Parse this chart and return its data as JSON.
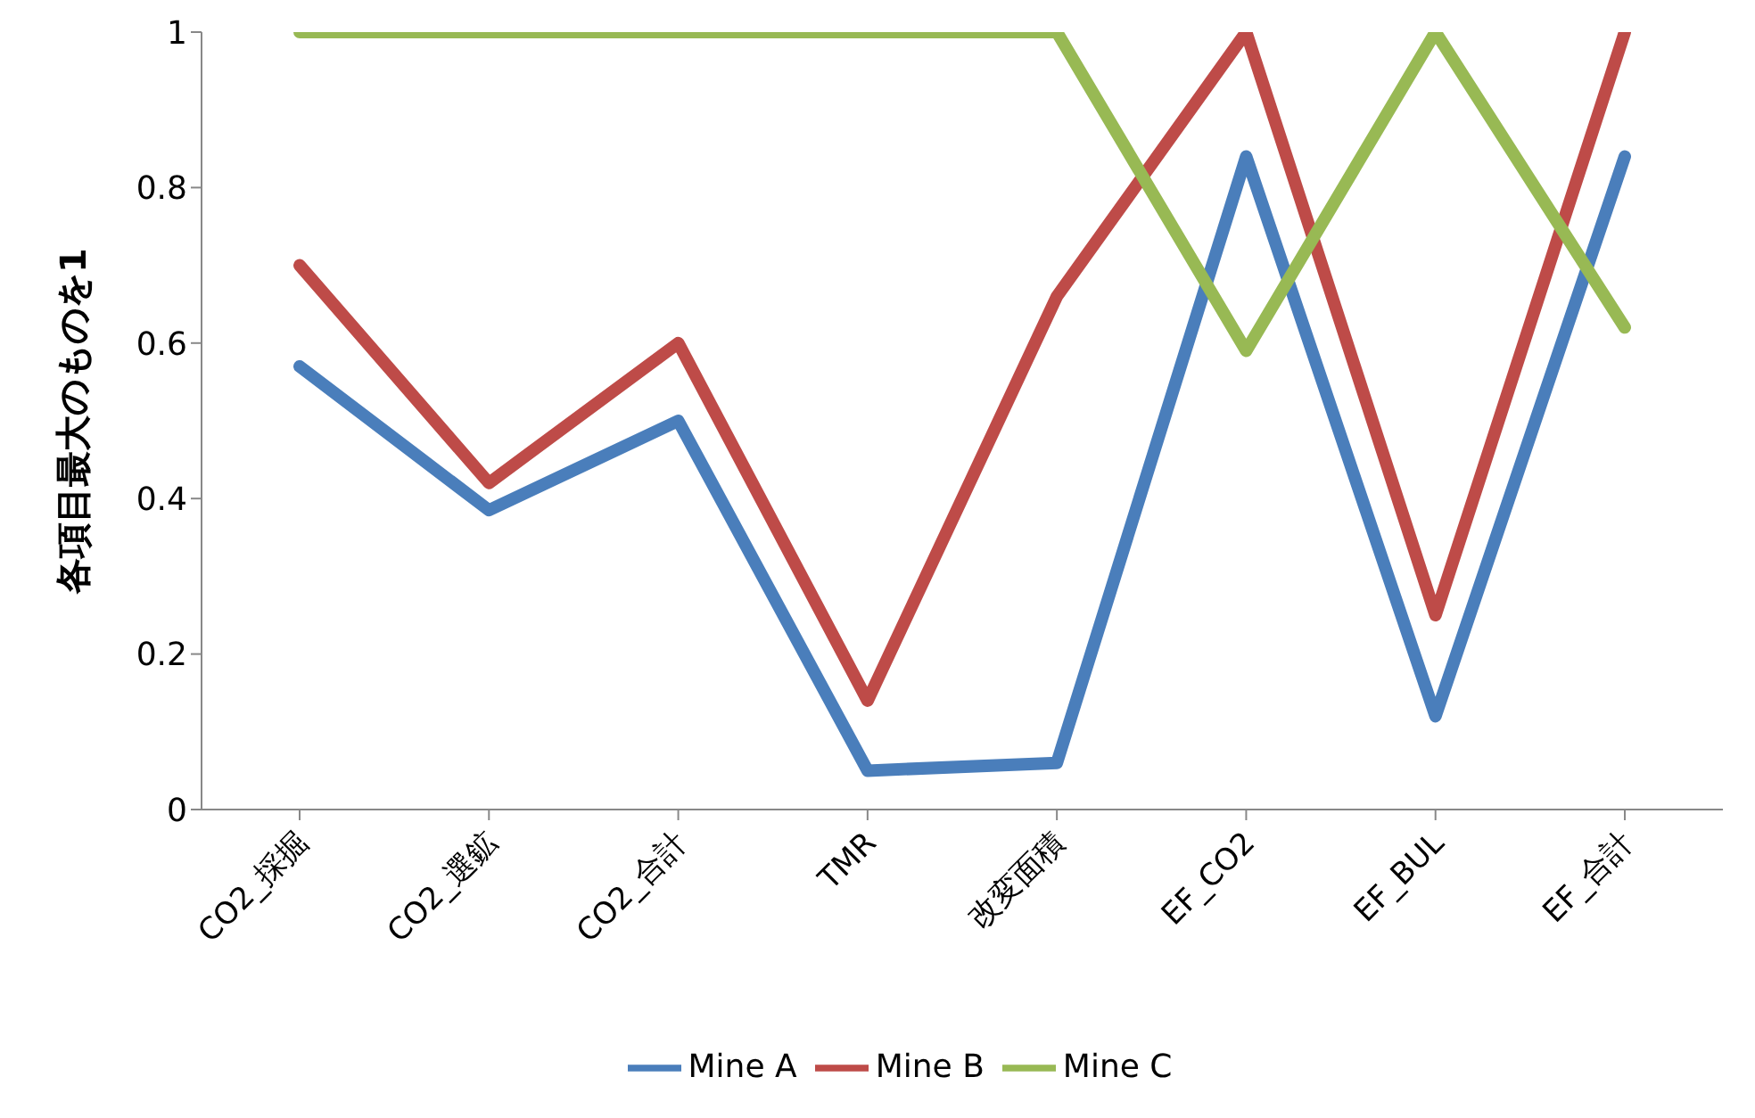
{
  "chart_data": {
    "type": "line",
    "ylabel": "各項目最大のものを1",
    "categories": [
      "CO2_採掘",
      "CO2_選鉱",
      "CO2_合計",
      "TMR",
      "改変面積",
      "EF_CO2",
      "EF_BUL",
      "EF_合計"
    ],
    "series": [
      {
        "name": "Mine A",
        "color": "#4a7ebb",
        "values": [
          0.57,
          0.385,
          0.5,
          0.05,
          0.06,
          0.84,
          0.12,
          0.84
        ]
      },
      {
        "name": "Mine B",
        "color": "#be4b48",
        "values": [
          0.7,
          0.42,
          0.6,
          0.14,
          0.66,
          1,
          0.25,
          1
        ]
      },
      {
        "name": "Mine C",
        "color": "#98b954",
        "values": [
          1,
          1,
          1,
          1,
          1,
          0.59,
          1,
          0.62
        ]
      }
    ],
    "ylim": [
      0,
      1
    ],
    "yticks": [
      0,
      0.2,
      0.4,
      0.6,
      0.8,
      1
    ],
    "grid": false,
    "legend": "bottom",
    "marker": "none",
    "line_style": "solid"
  }
}
